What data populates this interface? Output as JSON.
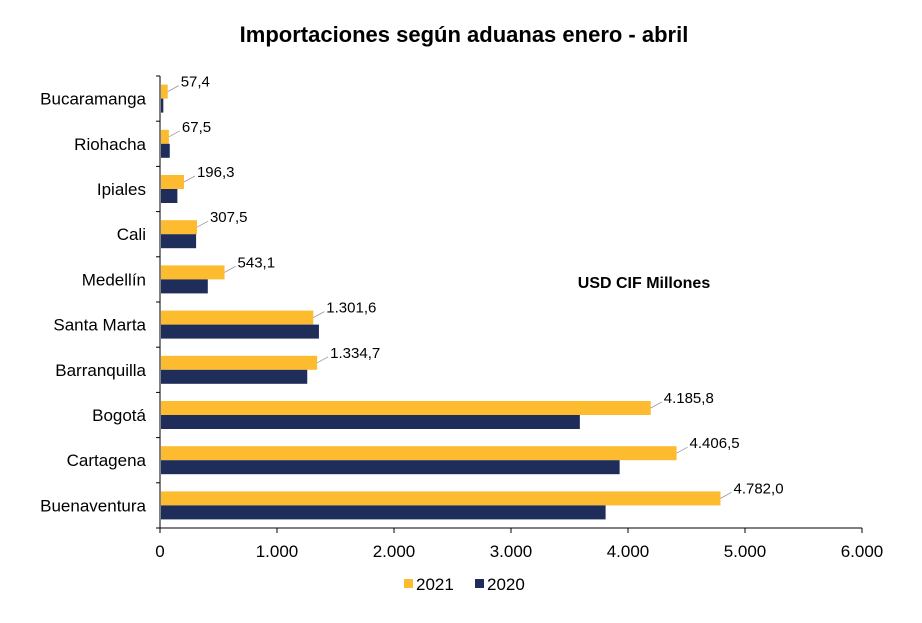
{
  "chart_data": {
    "type": "bar",
    "orientation": "horizontal",
    "title": "Importaciones según aduanas enero - abril",
    "annotation": "USD CIF Millones",
    "categories": [
      "Bucaramanga",
      "Riohacha",
      "Ipiales",
      "Cali",
      "Medellín",
      "Santa Marta",
      "Barranquilla",
      "Bogotá",
      "Cartagena",
      "Buenaventura"
    ],
    "series": [
      {
        "name": "2021",
        "color": "#FDBB30",
        "values": [
          57.4,
          67.5,
          196.3,
          307.5,
          543.1,
          1301.6,
          1334.7,
          4185.8,
          4406.5,
          4782.0
        ],
        "labels": [
          "57,4",
          "67,5",
          "196,3",
          "307,5",
          "543,1",
          "1.301,6",
          "1.334,7",
          "4.185,8",
          "4.406,5",
          "4.782,0"
        ]
      },
      {
        "name": "2020",
        "color": "#1F2D5A",
        "values": [
          20,
          75,
          140,
          300,
          400,
          1350,
          1250,
          3580,
          3920,
          3800
        ]
      }
    ],
    "xlim": [
      0,
      6000
    ],
    "xticks": [
      0,
      1000,
      2000,
      3000,
      4000,
      5000,
      6000
    ],
    "xtick_labels": [
      "0",
      "1.000",
      "2.000",
      "3.000",
      "4.000",
      "5.000",
      "6.000"
    ],
    "grid": false,
    "legend_position": "bottom"
  }
}
